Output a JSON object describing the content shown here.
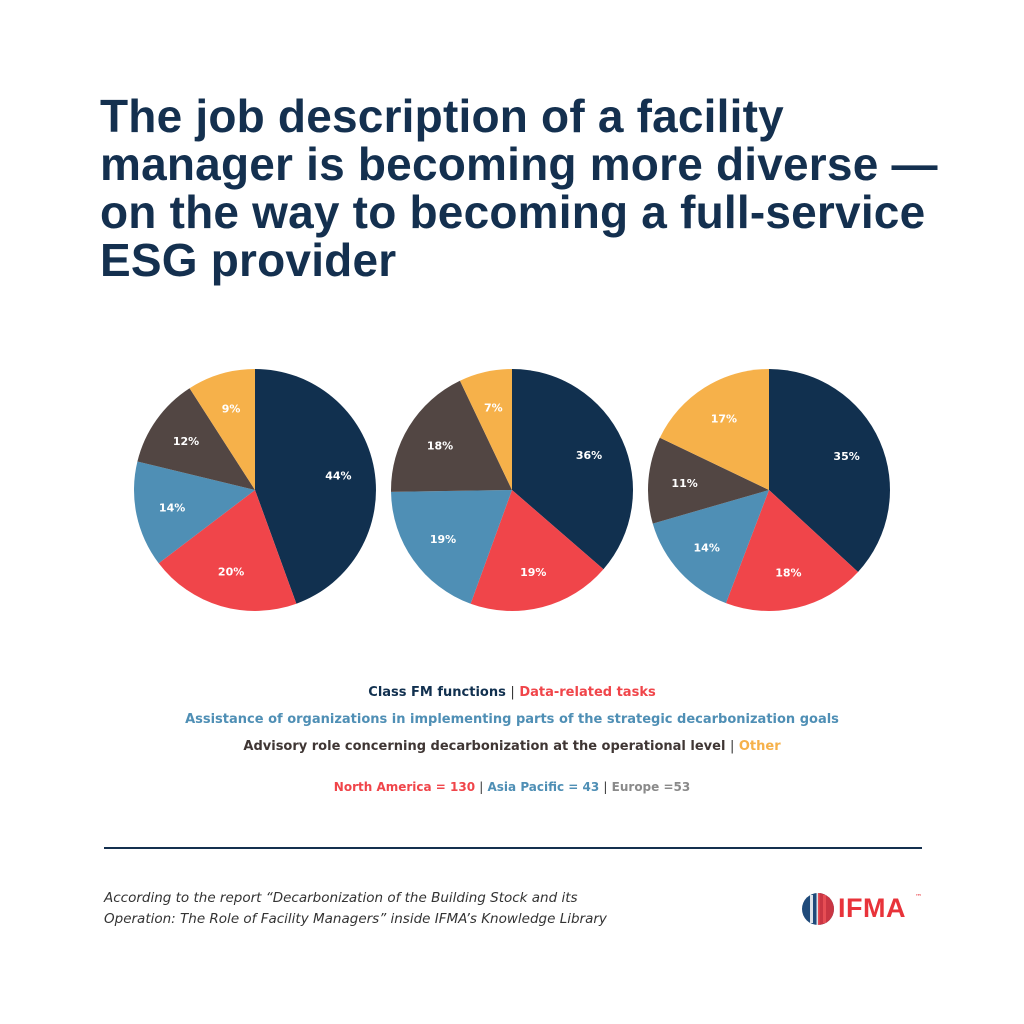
{
  "title": "The job description of a facility manager is becoming more diverse — on the way to becoming a full-service ESG provider",
  "chart_data": [
    {
      "type": "pie",
      "region": "North America",
      "categories": [
        "Class FM functions",
        "Data-related tasks",
        "Assistance of organizations in implementing parts of the strategic decarbonization goals",
        "Advisory role concerning decarbonization at the operational level",
        "Other"
      ],
      "values": [
        44,
        20,
        14,
        12,
        9
      ],
      "labels": [
        "44%",
        "20%",
        "14%",
        "12%",
        "9%"
      ],
      "colors": [
        "#11304f",
        "#f0454a",
        "#4f8fb5",
        "#524643",
        "#f6b14a"
      ]
    },
    {
      "type": "pie",
      "region": "Asia Pacific",
      "categories": [
        "Class FM functions",
        "Data-related tasks",
        "Assistance of organizations in implementing parts of the strategic decarbonization goals",
        "Advisory role concerning decarbonization at the operational level",
        "Other"
      ],
      "values": [
        36,
        19,
        19,
        18,
        7
      ],
      "labels": [
        "36%",
        "19%",
        "19%",
        "18%",
        "7%"
      ],
      "colors": [
        "#11304f",
        "#f0454a",
        "#4f8fb5",
        "#524643",
        "#f6b14a"
      ]
    },
    {
      "type": "pie",
      "region": "Europe",
      "categories": [
        "Class FM functions",
        "Data-related tasks",
        "Assistance of organizations in implementing parts of the strategic decarbonization goals",
        "Advisory role concerning decarbonization at the operational level",
        "Other"
      ],
      "values": [
        35,
        18,
        14,
        11,
        17
      ],
      "labels": [
        "35%",
        "18%",
        "14%",
        "11%",
        "17%"
      ],
      "colors": [
        "#11304f",
        "#f0454a",
        "#4f8fb5",
        "#524643",
        "#f6b14a"
      ]
    }
  ],
  "legend": {
    "class_fm": "Class FM functions",
    "data_tasks": "Data-related tasks",
    "assistance": "Assistance of organizations in implementing parts of the strategic decarbonization goals",
    "advisory": "Advisory role concerning decarbonization at the operational level",
    "other": "Other",
    "separator": "|"
  },
  "samples": {
    "north_america": "North America = 130",
    "asia_pacific": "Asia Pacific = 43",
    "europe": "Europe =53"
  },
  "colors": {
    "navy": "#11304f",
    "red": "#f0454a",
    "blue": "#4f8fb5",
    "brown": "#524643",
    "yellow": "#f6b14a",
    "gray": "#8a8a8a"
  },
  "source": {
    "line1": "According to the report “Decarbonization of the Building Stock and its",
    "line2": "Operation: The Role of Facility Managers” inside IFMA’s Knowledge Library"
  },
  "logo": {
    "text": "IFMA",
    "tm": "™"
  }
}
